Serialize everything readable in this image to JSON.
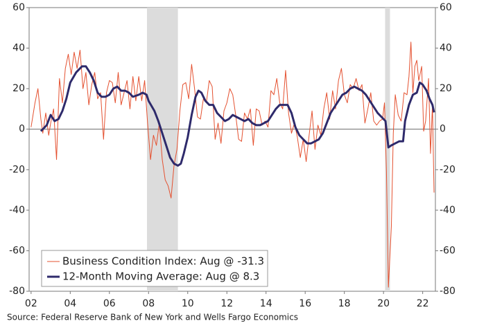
{
  "chart_data": {
    "type": "line",
    "xlim": [
      2001.9,
      2022.65
    ],
    "xticks": [
      {
        "value": 2002,
        "label": "02"
      },
      {
        "value": 2004,
        "label": "04"
      },
      {
        "value": 2006,
        "label": "06"
      },
      {
        "value": 2008,
        "label": "08"
      },
      {
        "value": 2010,
        "label": "10"
      },
      {
        "value": 2012,
        "label": "12"
      },
      {
        "value": 2014,
        "label": "14"
      },
      {
        "value": 2016,
        "label": "16"
      },
      {
        "value": 2018,
        "label": "18"
      },
      {
        "value": 2020,
        "label": "20"
      },
      {
        "value": 2022,
        "label": "22"
      }
    ],
    "ylim": [
      -80,
      60
    ],
    "yticks": [
      -80,
      -60,
      -40,
      -20,
      0,
      20,
      40,
      60
    ],
    "shaded_ranges": [
      [
        2007.92,
        2009.5
      ],
      [
        2020.08,
        2020.33
      ]
    ],
    "shade_color": "#dcdcdc",
    "legend": "lower-left",
    "source": "Source: Federal Reserve Bank of New York and Wells Fargo Economics",
    "series": [
      {
        "name": "Business Condition Index: Aug @ -31.3",
        "color": "#e4502f",
        "width": 1,
        "x": [
          2002.0,
          2002.2,
          2002.35,
          2002.5,
          2002.6,
          2002.75,
          2002.9,
          2003.0,
          2003.15,
          2003.3,
          2003.45,
          2003.6,
          2003.75,
          2003.9,
          2004.05,
          2004.2,
          2004.35,
          2004.5,
          2004.65,
          2004.8,
          2004.95,
          2005.1,
          2005.25,
          2005.4,
          2005.55,
          2005.7,
          2005.85,
          2006.0,
          2006.15,
          2006.3,
          2006.45,
          2006.6,
          2006.75,
          2006.9,
          2007.05,
          2007.2,
          2007.35,
          2007.5,
          2007.65,
          2007.8,
          2007.95,
          2008.1,
          2008.25,
          2008.4,
          2008.55,
          2008.7,
          2008.85,
          2009.0,
          2009.15,
          2009.3,
          2009.45,
          2009.6,
          2009.75,
          2009.9,
          2010.05,
          2010.2,
          2010.35,
          2010.5,
          2010.65,
          2010.8,
          2010.95,
          2011.1,
          2011.25,
          2011.4,
          2011.55,
          2011.7,
          2011.85,
          2012.0,
          2012.15,
          2012.3,
          2012.45,
          2012.6,
          2012.75,
          2012.9,
          2013.05,
          2013.2,
          2013.35,
          2013.5,
          2013.65,
          2013.8,
          2013.95,
          2014.1,
          2014.25,
          2014.4,
          2014.55,
          2014.7,
          2014.85,
          2015.0,
          2015.15,
          2015.3,
          2015.45,
          2015.6,
          2015.75,
          2015.9,
          2016.05,
          2016.2,
          2016.35,
          2016.5,
          2016.65,
          2016.8,
          2016.95,
          2017.1,
          2017.25,
          2017.4,
          2017.55,
          2017.7,
          2017.85,
          2018.0,
          2018.15,
          2018.3,
          2018.45,
          2018.6,
          2018.75,
          2018.9,
          2019.05,
          2019.2,
          2019.35,
          2019.5,
          2019.65,
          2019.8,
          2019.95,
          2020.05,
          2020.15,
          2020.25,
          2020.4,
          2020.5,
          2020.6,
          2020.75,
          2020.9,
          2021.05,
          2021.2,
          2021.3,
          2021.4,
          2021.5,
          2021.6,
          2021.7,
          2021.8,
          2021.95,
          2022.05,
          2022.15,
          2022.3,
          2022.4,
          2022.5,
          2022.58
        ],
        "values": [
          1,
          13,
          20,
          5,
          -2,
          8,
          -3,
          3,
          10,
          -15,
          25,
          13,
          30,
          37,
          27,
          38,
          30,
          39,
          20,
          28,
          12,
          22,
          28,
          15,
          18,
          -5,
          18,
          24,
          23,
          13,
          28,
          12,
          18,
          24,
          10,
          26,
          14,
          26,
          14,
          24,
          3,
          -15,
          -3,
          -8,
          3,
          -15,
          -25,
          -28,
          -34,
          -18,
          -10,
          9,
          22,
          23,
          15,
          32,
          20,
          6,
          5,
          15,
          13,
          24,
          21,
          -5,
          3,
          -7,
          9,
          13,
          20,
          17,
          7,
          -5,
          -6,
          8,
          5,
          10,
          -8,
          10,
          9,
          2,
          4,
          1,
          19,
          17,
          25,
          13,
          10,
          29,
          8,
          -2,
          3,
          -4,
          -14,
          -5,
          -16,
          -3,
          9,
          -10,
          2,
          -3,
          10,
          18,
          5,
          19,
          10,
          24,
          30,
          17,
          13,
          22,
          20,
          25,
          19,
          22,
          3,
          10,
          18,
          4,
          2,
          4,
          5,
          13,
          -21,
          -78,
          -48,
          -2,
          17,
          7,
          4,
          18,
          17,
          26,
          43,
          18,
          31,
          34,
          24,
          31,
          -1,
          4,
          25,
          -12,
          12,
          -31.3
        ]
      },
      {
        "name": "12-Month Moving Average: Aug @ 8.3",
        "color": "#2e2a6b",
        "width": 3,
        "x": [
          2002.5,
          2002.8,
          2003.0,
          2003.2,
          2003.4,
          2003.6,
          2003.8,
          2004.0,
          2004.3,
          2004.6,
          2004.8,
          2005.0,
          2005.2,
          2005.4,
          2005.6,
          2005.8,
          2006.0,
          2006.2,
          2006.4,
          2006.6,
          2006.8,
          2007.0,
          2007.2,
          2007.5,
          2007.7,
          2007.9,
          2008.0,
          2008.3,
          2008.5,
          2008.7,
          2008.9,
          2009.1,
          2009.3,
          2009.5,
          2009.65,
          2009.8,
          2010.0,
          2010.2,
          2010.4,
          2010.55,
          2010.7,
          2010.9,
          2011.1,
          2011.3,
          2011.5,
          2011.7,
          2011.9,
          2012.1,
          2012.3,
          2012.5,
          2012.7,
          2012.9,
          2013.1,
          2013.3,
          2013.5,
          2013.7,
          2013.9,
          2014.1,
          2014.3,
          2014.5,
          2014.7,
          2014.9,
          2015.1,
          2015.3,
          2015.5,
          2015.7,
          2015.9,
          2016.1,
          2016.3,
          2016.5,
          2016.7,
          2016.9,
          2017.1,
          2017.3,
          2017.5,
          2017.7,
          2017.9,
          2018.1,
          2018.3,
          2018.5,
          2018.7,
          2018.9,
          2019.1,
          2019.3,
          2019.5,
          2019.7,
          2019.9,
          2020.0,
          2020.1,
          2020.25,
          2020.4,
          2020.6,
          2020.8,
          2021.0,
          2021.1,
          2021.3,
          2021.5,
          2021.7,
          2021.85,
          2022.0,
          2022.2,
          2022.35,
          2022.5,
          2022.58
        ],
        "values": [
          -1,
          2,
          7,
          4,
          5,
          9,
          15,
          23,
          28,
          31,
          31,
          28,
          24,
          18,
          16,
          16,
          17,
          20,
          21,
          19,
          19,
          18,
          16,
          17,
          18,
          17,
          14,
          9,
          4,
          -2,
          -8,
          -14,
          -17,
          -18,
          -17,
          -12,
          -4,
          7,
          16,
          19,
          18,
          14,
          12,
          12,
          8,
          6,
          4,
          5,
          7,
          6,
          5,
          4,
          5,
          3,
          2,
          2,
          3,
          4,
          7,
          10,
          12,
          12,
          12,
          8,
          1,
          -3,
          -5,
          -7,
          -7,
          -6,
          -5,
          -2,
          3,
          8,
          11,
          14,
          17,
          18,
          20,
          21,
          20,
          19,
          17,
          14,
          11,
          8,
          6,
          5,
          4,
          -9,
          -8,
          -7,
          -6,
          -6,
          4,
          12,
          17,
          18,
          23,
          22,
          19,
          15,
          12,
          8.3
        ]
      }
    ]
  }
}
